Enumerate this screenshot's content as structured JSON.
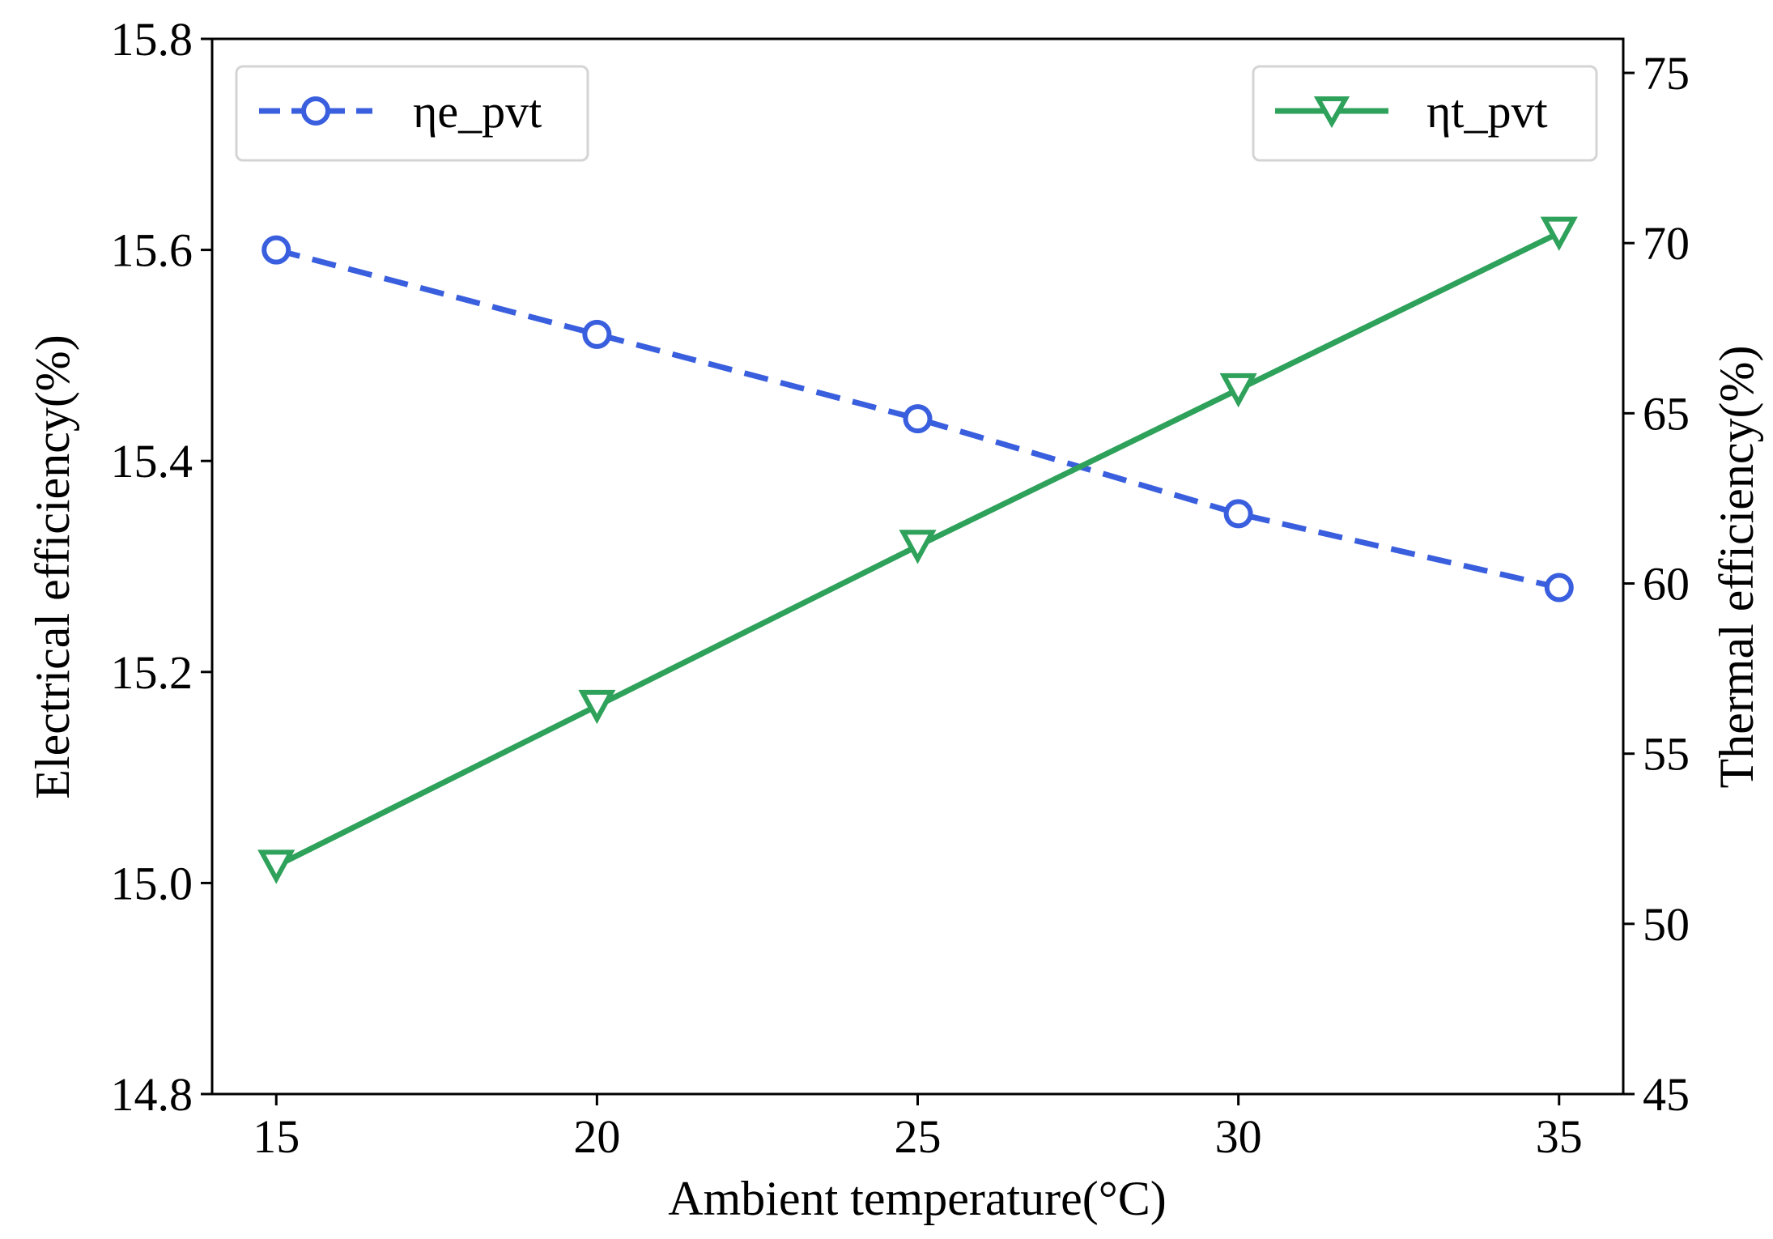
{
  "chart_data": {
    "type": "line",
    "title": "",
    "x": [
      15,
      20,
      25,
      30,
      35
    ],
    "xlabel": "Ambient temperature(°C)",
    "xlim": [
      14,
      36
    ],
    "xticks": [
      "15",
      "20",
      "25",
      "30",
      "35"
    ],
    "ylabel_left": "Electrical efficiency(%)",
    "ylim_left": [
      14.8,
      15.8
    ],
    "yticks_left": [
      "14.8",
      "15.0",
      "15.2",
      "15.4",
      "15.6",
      "15.8"
    ],
    "ylabel_right": "Thermal efficiency(%)",
    "ylim_right": [
      45,
      76
    ],
    "yticks_right": [
      "45",
      "50",
      "55",
      "60",
      "65",
      "70",
      "75"
    ],
    "grid": false,
    "series": [
      {
        "name": "ηe_pvt",
        "axis": "left",
        "values": [
          15.6,
          15.52,
          15.44,
          15.35,
          15.28
        ],
        "color": "#3a5fde",
        "line_style": "dashed",
        "marker": "circle",
        "legend_position": "top-left"
      },
      {
        "name": "ηt_pvt",
        "axis": "right",
        "values": [
          51.7,
          56.4,
          61.1,
          65.7,
          70.3
        ],
        "color": "#2ea15a",
        "line_style": "solid",
        "marker": "triangle-down",
        "legend_position": "top-right"
      }
    ]
  }
}
